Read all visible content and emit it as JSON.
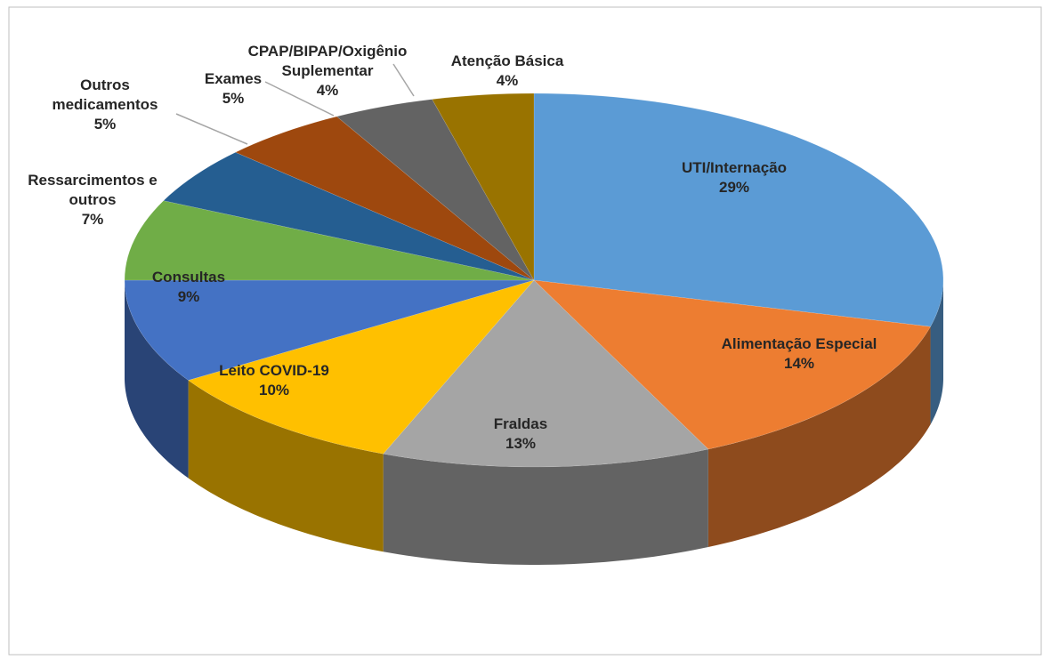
{
  "chart_data": {
    "type": "pie3d",
    "categories": [
      "UTI/Internação",
      "Alimentação Especial",
      "Fraldas",
      "Leito COVID-19",
      "Consultas",
      "Ressarcimentos e outros",
      "Outros medicamentos",
      "Exames",
      "CPAP/BIPAP/Oxigênio Suplementar",
      "Atenção Básica"
    ],
    "values": [
      29,
      14,
      13,
      10,
      9,
      7,
      5,
      5,
      4,
      4
    ],
    "value_labels": [
      "29%",
      "14%",
      "13%",
      "10%",
      "9%",
      "7%",
      "5%",
      "5%",
      "4%",
      "4%"
    ],
    "colors": [
      "#5b9bd5",
      "#ed7d31",
      "#a5a5a5",
      "#ffc000",
      "#4472c4",
      "#70ad47",
      "#255e91",
      "#9e480e",
      "#636363",
      "#997300"
    ]
  }
}
